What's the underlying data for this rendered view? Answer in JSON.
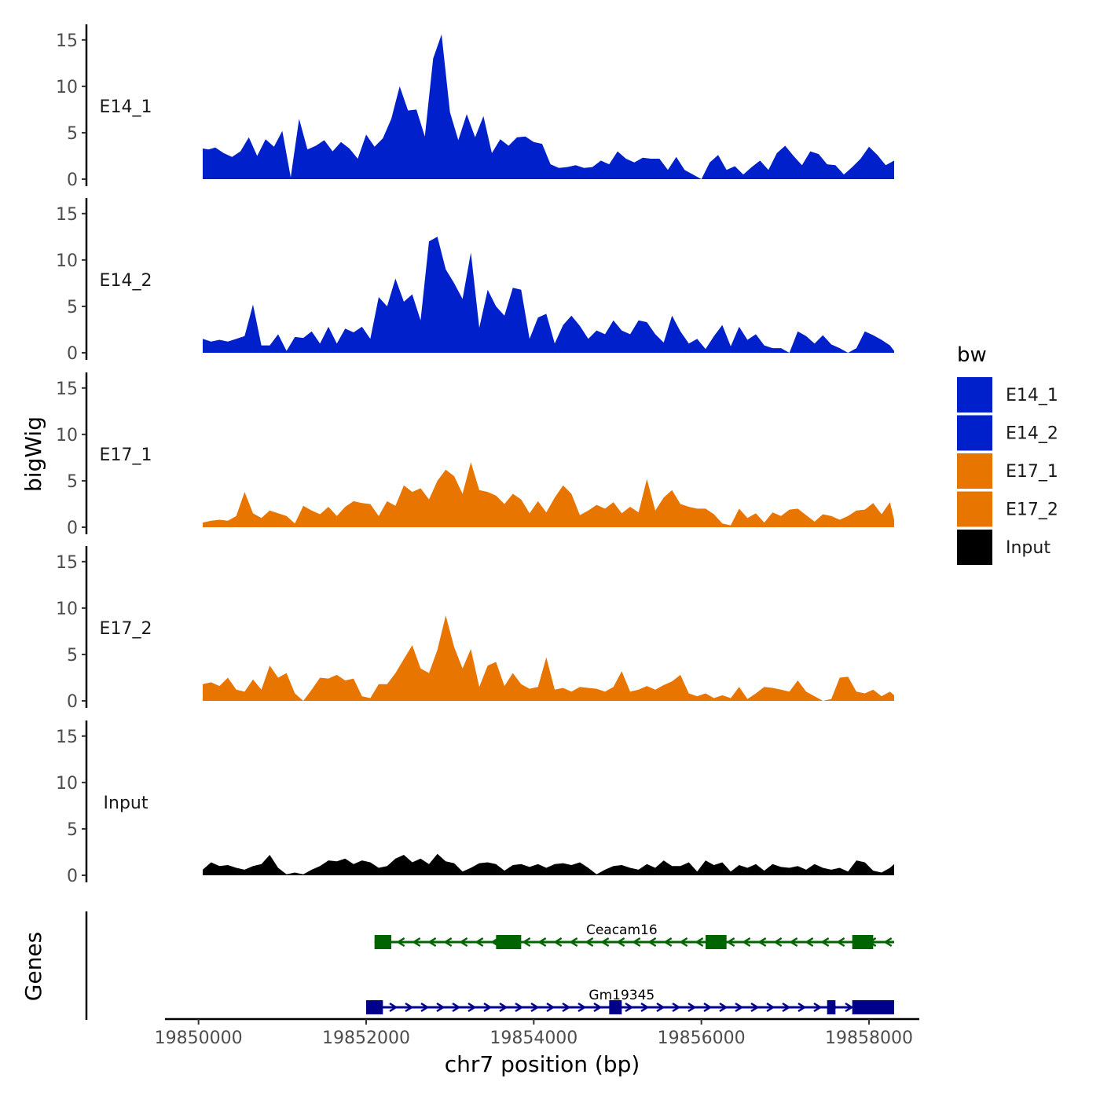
{
  "chart_data": {
    "type": "area",
    "subtype": "genome coverage tracks (bigWig)",
    "ylabel": "bigWig",
    "xlabel": "chr7 position (bp)",
    "genes_label": "Genes",
    "ylim": [
      0,
      16
    ],
    "yticks": [
      0,
      5,
      10,
      15
    ],
    "xlim": [
      19849600,
      19858600
    ],
    "xticks": [
      19850000,
      19852000,
      19854000,
      19856000,
      19858000
    ],
    "xtick_labels": [
      "19850000",
      "19852000",
      "19854000",
      "19856000",
      "19858000"
    ],
    "legend": {
      "title": "bw",
      "position": "right",
      "entries": [
        {
          "label": "E14_1",
          "color": "#0020CC"
        },
        {
          "label": "E14_2",
          "color": "#0020CC"
        },
        {
          "label": "E17_1",
          "color": "#E87500"
        },
        {
          "label": "E17_2",
          "color": "#E87500"
        },
        {
          "label": "Input",
          "color": "#000000"
        }
      ]
    },
    "series": [
      {
        "name": "E14_1",
        "color": "#0020CC",
        "x": [
          19850050,
          19850120,
          19850200,
          19850300,
          19850400,
          19850500,
          19850600,
          19850700,
          19850800,
          19850900,
          19851000,
          19851100,
          19851200,
          19851300,
          19851400,
          19851500,
          19851600,
          19851700,
          19851800,
          19851900,
          19852000,
          19852100,
          19852200,
          19852300,
          19852400,
          19852500,
          19852600,
          19852700,
          19852800,
          19852900,
          19853000,
          19853100,
          19853200,
          19853300,
          19853400,
          19853500,
          19853600,
          19853700,
          19853800,
          19853900,
          19854000,
          19854100,
          19854200,
          19854300,
          19854400,
          19854500,
          19854600,
          19854700,
          19854800,
          19854900,
          19855000,
          19855100,
          19855200,
          19855300,
          19855400,
          19855500,
          19855600,
          19855700,
          19855800,
          19855900,
          19856000,
          19856100,
          19856200,
          19856300,
          19856400,
          19856500,
          19856600,
          19856700,
          19856800,
          19856900,
          19857000,
          19857100,
          19857200,
          19857300,
          19857400,
          19857500,
          19857600,
          19857700,
          19857800,
          19857900,
          19858000,
          19858100,
          19858200,
          19858300
        ],
        "values": [
          3.3,
          3.2,
          3.4,
          2.8,
          2.4,
          3.0,
          4.5,
          2.5,
          4.3,
          3.5,
          5.2,
          0.2,
          6.5,
          3.2,
          3.6,
          4.2,
          3.0,
          4.0,
          3.3,
          2.2,
          4.8,
          3.5,
          4.4,
          6.5,
          10.0,
          7.4,
          7.5,
          4.6,
          13.0,
          15.6,
          7.2,
          4.2,
          7.0,
          4.5,
          6.8,
          2.8,
          4.3,
          3.6,
          4.5,
          4.6,
          4.0,
          3.8,
          1.6,
          1.2,
          1.3,
          1.5,
          1.2,
          1.3,
          2.0,
          1.6,
          3.0,
          2.2,
          1.8,
          2.3,
          2.2,
          2.2,
          1.0,
          2.4,
          1.0,
          0.5,
          0.0,
          1.8,
          2.6,
          1.0,
          1.4,
          0.5,
          1.3,
          2.0,
          1.0,
          2.8,
          3.6,
          2.5,
          1.5,
          3.0,
          2.7,
          1.6,
          1.5,
          0.5,
          1.3,
          2.2,
          3.5,
          2.6,
          1.5,
          2.0
        ]
      },
      {
        "name": "E14_2",
        "color": "#0020CC",
        "x": [
          19850050,
          19850150,
          19850250,
          19850350,
          19850450,
          19850550,
          19850650,
          19850750,
          19850850,
          19850950,
          19851050,
          19851150,
          19851250,
          19851350,
          19851450,
          19851550,
          19851650,
          19851750,
          19851850,
          19851950,
          19852050,
          19852150,
          19852250,
          19852350,
          19852450,
          19852550,
          19852650,
          19852750,
          19852850,
          19852950,
          19853050,
          19853150,
          19853250,
          19853350,
          19853450,
          19853550,
          19853650,
          19853750,
          19853850,
          19853950,
          19854050,
          19854150,
          19854250,
          19854350,
          19854450,
          19854550,
          19854650,
          19854750,
          19854850,
          19854950,
          19855050,
          19855150,
          19855250,
          19855350,
          19855450,
          19855550,
          19855650,
          19855750,
          19855850,
          19855950,
          19856050,
          19856150,
          19856250,
          19856350,
          19856450,
          19856550,
          19856650,
          19856750,
          19856850,
          19856950,
          19857050,
          19857150,
          19857250,
          19857350,
          19857450,
          19857550,
          19857650,
          19857750,
          19857850,
          19857950,
          19858050,
          19858150,
          19858250,
          19858300
        ],
        "values": [
          1.5,
          1.2,
          1.4,
          1.2,
          1.5,
          1.8,
          5.2,
          0.8,
          0.8,
          2.0,
          0.2,
          1.7,
          1.6,
          2.3,
          1.0,
          2.8,
          1.0,
          2.6,
          2.2,
          2.8,
          1.5,
          6.0,
          5.0,
          8.0,
          5.5,
          6.3,
          3.5,
          12.0,
          12.5,
          9.0,
          7.5,
          5.8,
          10.8,
          2.7,
          6.8,
          5.0,
          4.0,
          7.0,
          6.8,
          1.5,
          3.8,
          4.2,
          1.0,
          3.0,
          4.0,
          2.9,
          1.5,
          2.4,
          2.0,
          3.5,
          2.4,
          2.0,
          3.5,
          3.3,
          2.0,
          1.1,
          4.0,
          2.3,
          1.0,
          1.5,
          0.4,
          1.8,
          3.0,
          0.7,
          2.8,
          1.4,
          2.0,
          0.8,
          0.5,
          0.5,
          0.0,
          2.3,
          1.8,
          1.0,
          1.9,
          0.9,
          0.5,
          0.0,
          0.5,
          2.3,
          1.9,
          1.4,
          0.8,
          0.2
        ]
      },
      {
        "name": "E17_1",
        "color": "#E87500",
        "x": [
          19850050,
          19850150,
          19850250,
          19850350,
          19850450,
          19850550,
          19850650,
          19850750,
          19850850,
          19850950,
          19851050,
          19851150,
          19851250,
          19851350,
          19851450,
          19851550,
          19851650,
          19851750,
          19851850,
          19851950,
          19852050,
          19852150,
          19852250,
          19852350,
          19852450,
          19852550,
          19852650,
          19852750,
          19852850,
          19852950,
          19853050,
          19853150,
          19853250,
          19853350,
          19853450,
          19853550,
          19853650,
          19853750,
          19853850,
          19853950,
          19854050,
          19854150,
          19854250,
          19854350,
          19854450,
          19854550,
          19854650,
          19854750,
          19854850,
          19854950,
          19855050,
          19855150,
          19855250,
          19855350,
          19855450,
          19855550,
          19855650,
          19855750,
          19855850,
          19855950,
          19856050,
          19856150,
          19856250,
          19856350,
          19856450,
          19856550,
          19856650,
          19856750,
          19856850,
          19856950,
          19857050,
          19857150,
          19857250,
          19857350,
          19857450,
          19857550,
          19857650,
          19857750,
          19857850,
          19857950,
          19858050,
          19858150,
          19858250,
          19858300
        ],
        "values": [
          0.5,
          0.7,
          0.8,
          0.7,
          1.2,
          3.8,
          1.5,
          1.0,
          1.8,
          1.5,
          1.2,
          0.4,
          2.3,
          1.8,
          1.4,
          2.2,
          1.2,
          2.2,
          2.8,
          2.6,
          2.5,
          1.2,
          2.8,
          2.3,
          4.5,
          3.8,
          4.2,
          3.0,
          5.0,
          6.2,
          5.5,
          3.6,
          7.0,
          4.0,
          3.8,
          3.4,
          2.5,
          3.6,
          3.0,
          1.5,
          2.8,
          1.6,
          3.2,
          4.5,
          3.6,
          1.3,
          1.8,
          2.4,
          2.0,
          2.7,
          1.5,
          2.2,
          1.6,
          5.2,
          1.8,
          3.2,
          4.0,
          2.5,
          2.2,
          2.0,
          2.0,
          1.4,
          0.4,
          0.2,
          2.0,
          1.0,
          1.5,
          0.5,
          1.6,
          1.2,
          1.9,
          2.0,
          1.3,
          0.6,
          1.4,
          1.2,
          0.8,
          1.2,
          1.8,
          1.9,
          2.6,
          1.4,
          2.7,
          0.8
        ]
      },
      {
        "name": "E17_2",
        "color": "#E87500",
        "x": [
          19850050,
          19850150,
          19850250,
          19850350,
          19850450,
          19850550,
          19850650,
          19850750,
          19850850,
          19850950,
          19851050,
          19851150,
          19851250,
          19851350,
          19851450,
          19851550,
          19851650,
          19851750,
          19851850,
          19851950,
          19852050,
          19852150,
          19852250,
          19852350,
          19852450,
          19852550,
          19852650,
          19852750,
          19852850,
          19852950,
          19853050,
          19853150,
          19853250,
          19853350,
          19853450,
          19853550,
          19853650,
          19853750,
          19853850,
          19853950,
          19854050,
          19854150,
          19854250,
          19854350,
          19854450,
          19854550,
          19854650,
          19854750,
          19854850,
          19854950,
          19855050,
          19855150,
          19855250,
          19855350,
          19855450,
          19855550,
          19855650,
          19855750,
          19855850,
          19855950,
          19856050,
          19856150,
          19856250,
          19856350,
          19856450,
          19856550,
          19856650,
          19856750,
          19856850,
          19856950,
          19857050,
          19857150,
          19857250,
          19857350,
          19857450,
          19857550,
          19857650,
          19857750,
          19857850,
          19857950,
          19858050,
          19858150,
          19858250,
          19858300
        ],
        "values": [
          1.8,
          2.0,
          1.6,
          2.5,
          1.2,
          1.0,
          2.3,
          1.2,
          3.8,
          2.5,
          3.0,
          0.8,
          0.0,
          1.2,
          2.5,
          2.4,
          2.8,
          2.2,
          2.4,
          0.5,
          0.3,
          1.8,
          1.8,
          3.0,
          4.5,
          6.0,
          3.5,
          3.0,
          5.5,
          9.2,
          5.8,
          3.5,
          5.6,
          1.5,
          3.8,
          4.2,
          1.6,
          3.0,
          1.8,
          1.3,
          1.5,
          4.7,
          1.2,
          1.4,
          1.0,
          1.5,
          1.4,
          1.3,
          1.0,
          1.5,
          3.2,
          1.0,
          1.2,
          1.6,
          1.2,
          1.7,
          2.1,
          2.8,
          0.8,
          0.5,
          0.8,
          0.3,
          0.6,
          0.3,
          1.5,
          0.2,
          0.8,
          1.5,
          1.4,
          1.2,
          1.0,
          2.2,
          1.0,
          0.5,
          0.0,
          0.2,
          2.5,
          2.6,
          1.0,
          0.8,
          1.2,
          0.5,
          1.0,
          0.6
        ]
      },
      {
        "name": "Input",
        "color": "#000000",
        "x": [
          19850050,
          19850150,
          19850250,
          19850350,
          19850450,
          19850550,
          19850650,
          19850750,
          19850850,
          19850950,
          19851050,
          19851150,
          19851250,
          19851350,
          19851450,
          19851550,
          19851650,
          19851750,
          19851850,
          19851950,
          19852050,
          19852150,
          19852250,
          19852350,
          19852450,
          19852550,
          19852650,
          19852750,
          19852850,
          19852950,
          19853050,
          19853150,
          19853250,
          19853350,
          19853450,
          19853550,
          19853650,
          19853750,
          19853850,
          19853950,
          19854050,
          19854150,
          19854250,
          19854350,
          19854450,
          19854550,
          19854650,
          19854750,
          19854850,
          19854950,
          19855050,
          19855150,
          19855250,
          19855350,
          19855450,
          19855550,
          19855650,
          19855750,
          19855850,
          19855950,
          19856050,
          19856150,
          19856250,
          19856350,
          19856450,
          19856550,
          19856650,
          19856750,
          19856850,
          19856950,
          19857050,
          19857150,
          19857250,
          19857350,
          19857450,
          19857550,
          19857650,
          19857750,
          19857850,
          19857950,
          19858050,
          19858150,
          19858250,
          19858300
        ],
        "values": [
          0.6,
          1.4,
          1.0,
          1.1,
          0.8,
          0.6,
          1.0,
          1.2,
          2.2,
          0.8,
          0.1,
          0.3,
          0.1,
          0.6,
          1.0,
          1.6,
          1.5,
          1.8,
          1.2,
          1.6,
          1.4,
          0.8,
          1.0,
          1.8,
          2.2,
          1.4,
          1.8,
          1.2,
          2.3,
          1.5,
          1.3,
          0.4,
          0.8,
          1.3,
          1.4,
          1.2,
          0.5,
          1.1,
          1.2,
          0.9,
          1.2,
          0.8,
          1.2,
          1.3,
          1.1,
          1.4,
          0.8,
          0.1,
          0.6,
          1.0,
          1.1,
          0.8,
          0.6,
          1.2,
          0.8,
          1.6,
          1.0,
          1.0,
          1.4,
          0.4,
          1.6,
          1.1,
          1.4,
          0.4,
          1.1,
          0.8,
          1.2,
          0.5,
          1.2,
          0.9,
          0.8,
          1.0,
          0.6,
          1.2,
          0.8,
          0.6,
          0.8,
          0.4,
          1.6,
          1.4,
          0.5,
          0.3,
          0.8,
          1.2
        ]
      }
    ],
    "genes": [
      {
        "name": "Ceacam16",
        "strand": "-",
        "color": "#006400",
        "start": 19852100,
        "end": 19858300,
        "exons": [
          [
            19852100,
            19852300
          ],
          [
            19853550,
            19853850
          ],
          [
            19856050,
            19856300
          ],
          [
            19857800,
            19858050
          ]
        ],
        "label_position": 19855050
      },
      {
        "name": "Gm19345",
        "strand": "+",
        "color": "#00008B",
        "start": 19852000,
        "end": 19858300,
        "exons": [
          [
            19852000,
            19852200
          ],
          [
            19854900,
            19855050
          ],
          [
            19857500,
            19857600
          ],
          [
            19857800,
            19858300
          ]
        ],
        "label_position": 19855050
      }
    ]
  }
}
